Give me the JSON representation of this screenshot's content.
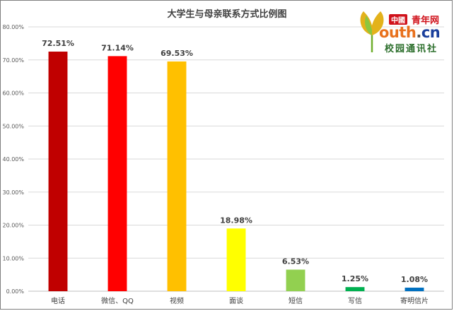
{
  "chart_data": {
    "type": "bar",
    "title": "大学生与母亲联系方式比例图",
    "categories": [
      "电话",
      "微信、QQ",
      "视频",
      "面谈",
      "短信",
      "写信",
      "寄明信片"
    ],
    "values": [
      72.51,
      71.14,
      69.53,
      18.98,
      6.53,
      1.25,
      1.08
    ],
    "value_labels": [
      "72.51%",
      "71.14%",
      "69.53%",
      "18.98%",
      "6.53%",
      "1.25%",
      "1.08%"
    ],
    "bar_colors": [
      "#c00000",
      "#ff0000",
      "#ffc000",
      "#ffff00",
      "#92d050",
      "#00b050",
      "#0070c0"
    ],
    "ylim": [
      0,
      80
    ],
    "yticks": [
      "0.00%",
      "10.00%",
      "20.00%",
      "30.00%",
      "40.00%",
      "50.00%",
      "60.00%",
      "70.00%",
      "80.00%"
    ],
    "grid": true,
    "legend": "none",
    "xlabel": "",
    "ylabel": ""
  },
  "logo": {
    "badge": "中國",
    "brand": "青年网",
    "youth": "outh",
    "dot": ".",
    "tld": "cn",
    "campus": "校园通讯社"
  }
}
